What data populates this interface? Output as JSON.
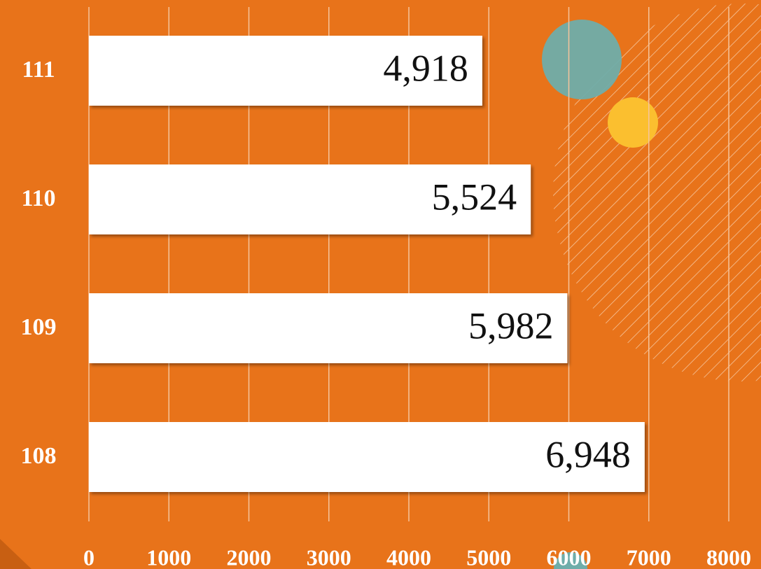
{
  "chart_data": {
    "type": "bar",
    "orientation": "horizontal",
    "categories": [
      "111",
      "110",
      "109",
      "108"
    ],
    "values": [
      4918,
      5524,
      5982,
      6948
    ],
    "value_labels": [
      "4,918",
      "5,524",
      "5,982",
      "6,948"
    ],
    "color": "#ffffff",
    "xlim": [
      0,
      8000
    ],
    "xticks": [
      0,
      1000,
      2000,
      3000,
      4000,
      5000,
      6000,
      7000,
      8000
    ],
    "grid": true
  }
}
